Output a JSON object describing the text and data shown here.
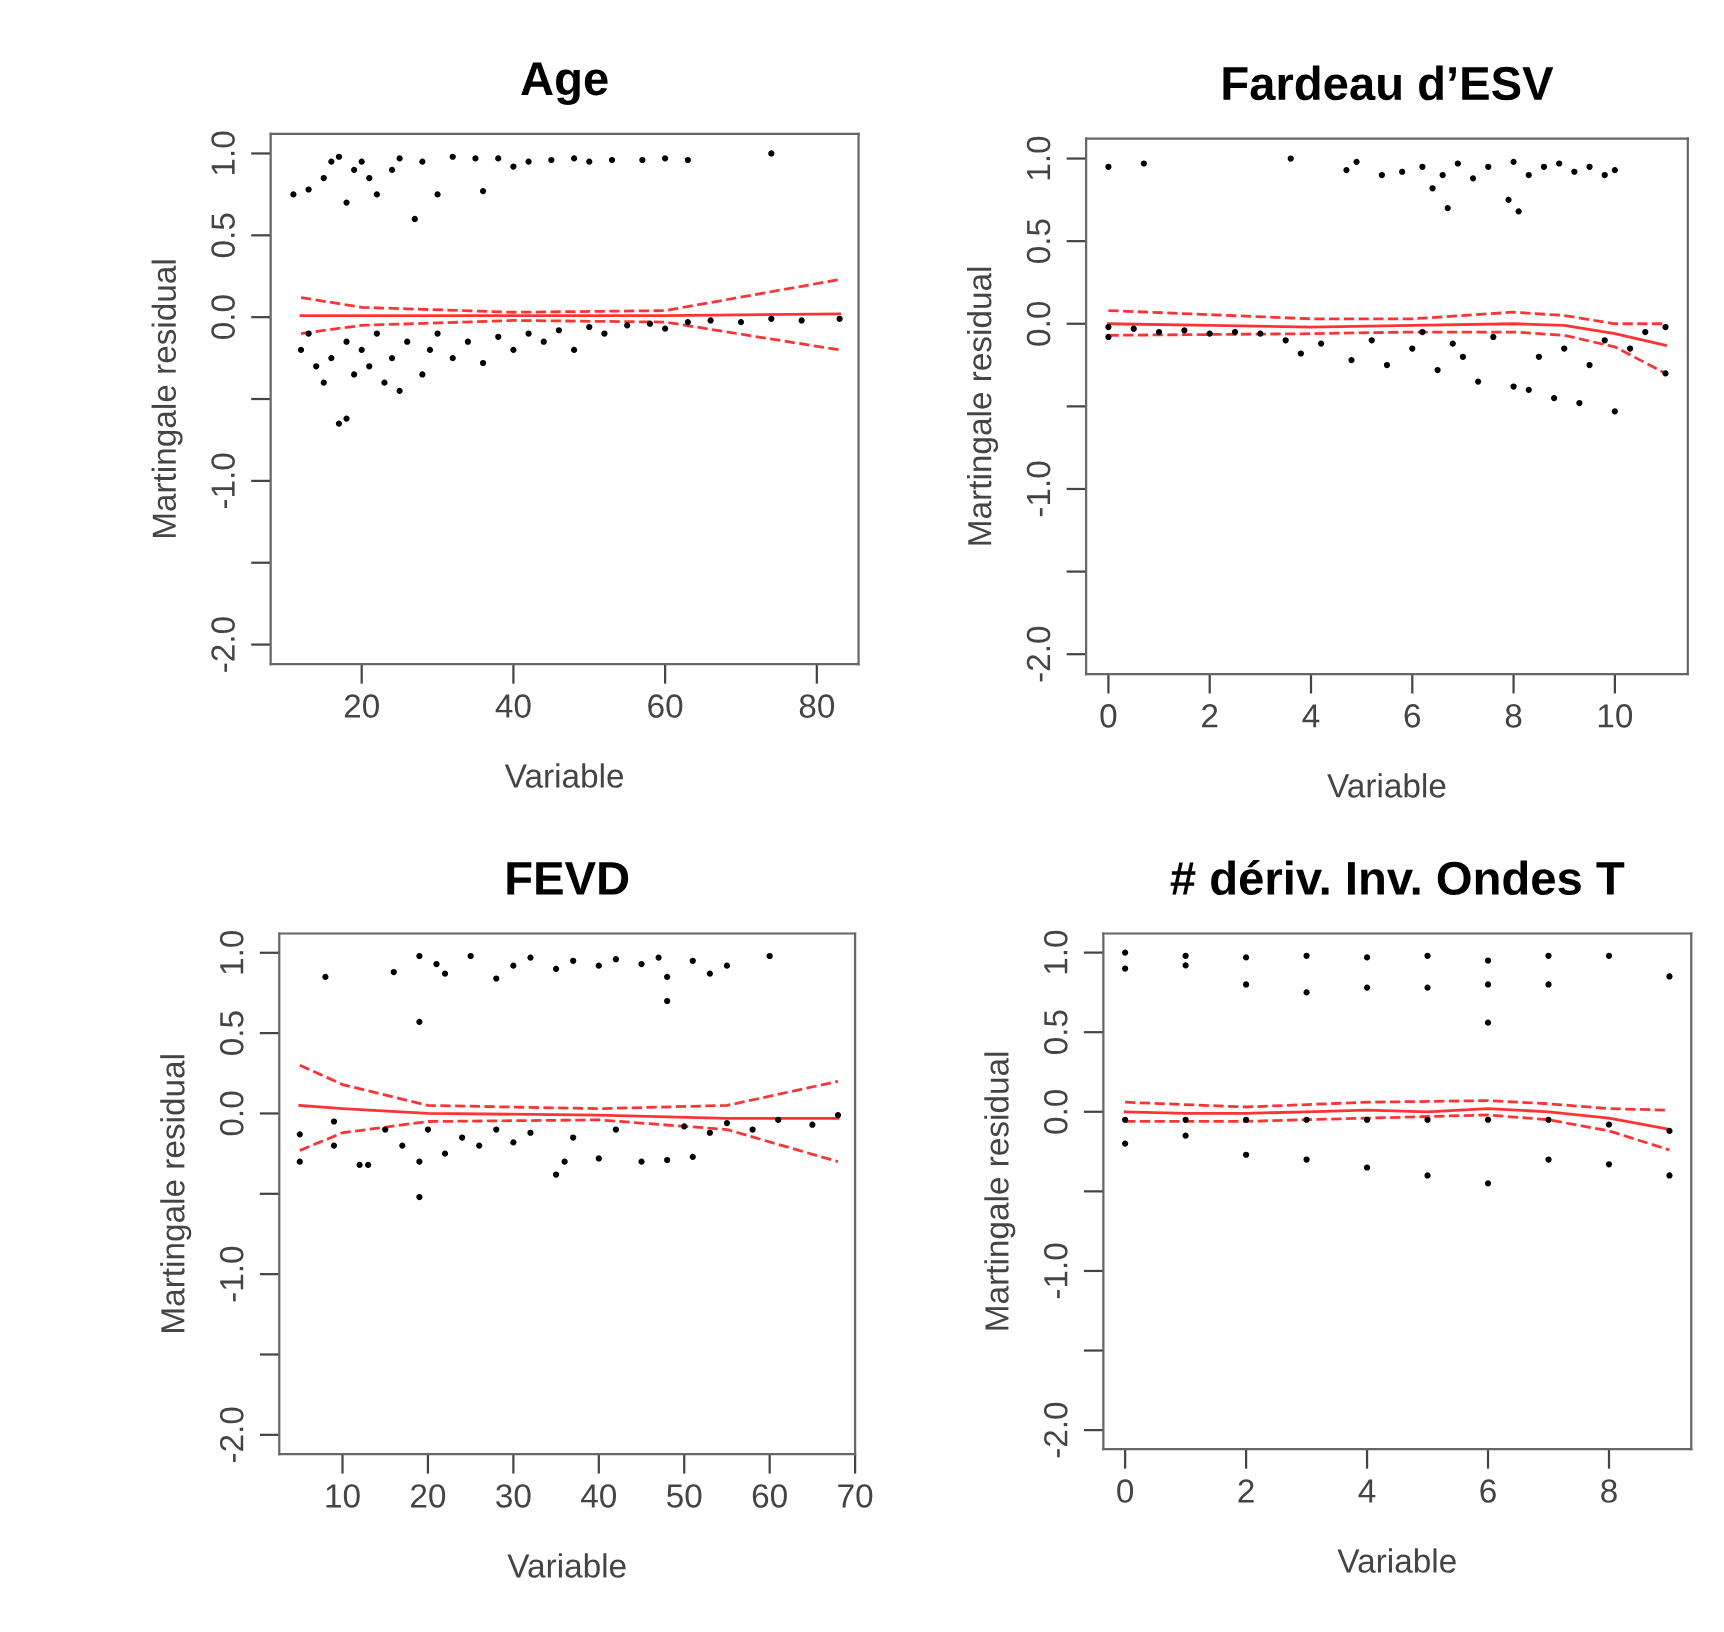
{
  "chart_data": [
    {
      "type": "scatter",
      "title": "Age",
      "xlabel": "Variable",
      "ylabel": "Martingale residual",
      "xlim": [
        8,
        85.5
      ],
      "xticks": [
        20,
        40,
        60,
        80
      ],
      "ylim": [
        -2.12,
        1.12
      ],
      "yticks": [
        {
          "value": 1.0,
          "label": "1.0"
        },
        {
          "value": 0.5,
          "label": "0.5"
        },
        {
          "value": 0.0,
          "label": "0.0"
        },
        {
          "value": -0.5,
          "label": null
        },
        {
          "value": -1.0,
          "label": "-1.0"
        },
        {
          "value": -1.5,
          "label": null
        },
        {
          "value": -2.0,
          "label": "-2.0"
        }
      ],
      "grid": false,
      "series": [
        {
          "type": "scatter",
          "marker": "circle",
          "color": "#000000",
          "x": [
            11,
            13,
            15,
            16,
            17,
            18,
            19,
            20,
            21,
            22,
            24,
            25,
            27,
            28,
            30,
            32,
            35,
            36,
            38,
            40,
            42,
            45,
            48,
            50,
            53,
            57,
            60,
            63,
            74,
            12,
            13,
            14,
            15,
            16,
            17,
            18,
            18,
            19,
            20,
            21,
            22,
            23,
            24,
            25,
            26,
            28,
            29,
            30,
            32,
            34,
            36,
            38,
            40,
            42,
            44,
            46,
            48,
            50,
            52,
            55,
            58,
            60,
            63,
            66,
            70,
            74,
            78,
            83
          ],
          "values": [
            0.75,
            0.78,
            0.85,
            0.95,
            0.98,
            0.7,
            0.9,
            0.95,
            0.85,
            0.75,
            0.9,
            0.97,
            0.6,
            0.95,
            0.75,
            0.98,
            0.97,
            0.77,
            0.97,
            0.92,
            0.95,
            0.96,
            0.97,
            0.95,
            0.96,
            0.96,
            0.97,
            0.96,
            1.0,
            -0.2,
            -0.1,
            -0.3,
            -0.4,
            -0.25,
            -0.65,
            -0.62,
            -0.15,
            -0.35,
            -0.2,
            -0.3,
            -0.1,
            -0.4,
            -0.25,
            -0.45,
            -0.15,
            -0.35,
            -0.2,
            -0.1,
            -0.25,
            -0.15,
            -0.28,
            -0.12,
            -0.2,
            -0.1,
            -0.15,
            -0.08,
            -0.2,
            -0.06,
            -0.1,
            -0.05,
            -0.04,
            -0.07,
            -0.03,
            -0.02,
            -0.03,
            -0.01,
            -0.02,
            -0.01
          ]
        },
        {
          "type": "line",
          "marker": "none",
          "color": "#ff0000",
          "line_style": "solid",
          "x": [
            12,
            20,
            40,
            60,
            83
          ],
          "values": [
            0.01,
            0.01,
            0.01,
            0.01,
            0.02
          ]
        },
        {
          "type": "line",
          "marker": "none",
          "color": "#ff0000",
          "line_style": "dashed",
          "x": [
            12,
            20,
            40,
            60,
            83
          ],
          "values": [
            0.12,
            0.06,
            0.03,
            0.04,
            0.23
          ]
        },
        {
          "type": "line",
          "marker": "none",
          "color": "#ff0000",
          "line_style": "dashed",
          "x": [
            12,
            20,
            40,
            60,
            83
          ],
          "values": [
            -0.1,
            -0.05,
            -0.02,
            -0.03,
            -0.2
          ]
        }
      ]
    },
    {
      "type": "scatter",
      "title": "Fardeau d’ESV",
      "xlabel": "Variable",
      "ylabel": "Martingale residual",
      "xlim": [
        -0.44,
        11.44
      ],
      "xticks": [
        0,
        2,
        4,
        6,
        8,
        10
      ],
      "ylim": [
        -2.12,
        1.12
      ],
      "yticks": [
        {
          "value": 1.0,
          "label": "1.0"
        },
        {
          "value": 0.5,
          "label": "0.5"
        },
        {
          "value": 0.0,
          "label": "0.0"
        },
        {
          "value": -0.5,
          "label": null
        },
        {
          "value": -1.0,
          "label": "-1.0"
        },
        {
          "value": -1.5,
          "label": null
        },
        {
          "value": -2.0,
          "label": "-2.0"
        }
      ],
      "grid": false,
      "series": [
        {
          "type": "scatter",
          "marker": "circle",
          "color": "#000000",
          "x": [
            0,
            0.7,
            3.6,
            4.7,
            4.9,
            5.4,
            5.8,
            6.2,
            6.4,
            6.6,
            6.7,
            6.9,
            7.2,
            7.5,
            7.9,
            8.0,
            8.1,
            8.3,
            8.6,
            8.9,
            9.2,
            9.5,
            9.8,
            10,
            0,
            0,
            0.5,
            1,
            1.5,
            2,
            2.5,
            3,
            3.5,
            3.8,
            4.2,
            4.8,
            5.2,
            5.5,
            6,
            6.2,
            6.5,
            6.8,
            7,
            7.3,
            7.6,
            8,
            8.3,
            8.5,
            8.8,
            9,
            9.3,
            9.5,
            9.8,
            10,
            10.3,
            10.6,
            11,
            11
          ],
          "values": [
            0.95,
            0.97,
            1.0,
            0.93,
            0.98,
            0.9,
            0.92,
            0.95,
            0.82,
            0.9,
            0.7,
            0.97,
            0.88,
            0.95,
            0.75,
            0.98,
            0.68,
            0.9,
            0.95,
            0.97,
            0.92,
            0.95,
            0.9,
            0.93,
            -0.02,
            -0.08,
            -0.03,
            -0.05,
            -0.04,
            -0.06,
            -0.05,
            -0.06,
            -0.1,
            -0.18,
            -0.12,
            -0.22,
            -0.1,
            -0.25,
            -0.15,
            -0.05,
            -0.28,
            -0.12,
            -0.2,
            -0.35,
            -0.08,
            -0.38,
            -0.4,
            -0.2,
            -0.45,
            -0.15,
            -0.48,
            -0.25,
            -0.1,
            -0.53,
            -0.15,
            -0.05,
            -0.02,
            -0.3
          ]
        },
        {
          "type": "line",
          "marker": "none",
          "color": "#ff0000",
          "line_style": "solid",
          "x": [
            0,
            2,
            4,
            6,
            8,
            9,
            10,
            11
          ],
          "values": [
            0.0,
            -0.01,
            -0.02,
            -0.01,
            0.0,
            -0.01,
            -0.06,
            -0.13
          ]
        },
        {
          "type": "line",
          "marker": "none",
          "color": "#ff0000",
          "line_style": "dashed",
          "x": [
            0,
            4,
            6,
            8,
            9,
            10,
            11
          ],
          "values": [
            0.08,
            0.03,
            0.03,
            0.07,
            0.05,
            0.0,
            0.0
          ]
        },
        {
          "type": "line",
          "marker": "none",
          "color": "#ff0000",
          "line_style": "dashed",
          "x": [
            0,
            4,
            6,
            8,
            9,
            10,
            11
          ],
          "values": [
            -0.07,
            -0.06,
            -0.05,
            -0.05,
            -0.07,
            -0.14,
            -0.3
          ]
        }
      ]
    },
    {
      "type": "scatter",
      "title": "FEVD",
      "xlabel": "Variable",
      "ylabel": "Martingale residual",
      "xlim": [
        2.6,
        70
      ],
      "xticks": [
        10,
        20,
        30,
        40,
        50,
        60,
        70
      ],
      "ylim": [
        -2.12,
        1.12
      ],
      "yticks": [
        {
          "value": 1.0,
          "label": "1.0"
        },
        {
          "value": 0.5,
          "label": "0.5"
        },
        {
          "value": 0.0,
          "label": "0.0"
        },
        {
          "value": -0.5,
          "label": null
        },
        {
          "value": -1.0,
          "label": "-1.0"
        },
        {
          "value": -1.5,
          "label": null
        },
        {
          "value": -2.0,
          "label": "-2.0"
        }
      ],
      "grid": false,
      "series": [
        {
          "type": "scatter",
          "marker": "circle",
          "color": "#000000",
          "x": [
            8,
            16,
            19,
            19,
            21,
            22,
            25,
            28,
            30,
            32,
            35,
            37,
            40,
            42,
            45,
            47,
            48,
            48,
            51,
            53,
            55,
            60,
            5,
            5,
            9,
            9,
            12,
            13,
            15,
            17,
            19,
            19,
            20,
            22,
            24,
            26,
            28,
            30,
            32,
            35,
            36,
            37,
            40,
            42,
            45,
            48,
            50,
            51,
            53,
            55,
            58,
            61,
            65,
            68
          ],
          "values": [
            0.85,
            0.88,
            0.98,
            0.57,
            0.93,
            0.87,
            0.98,
            0.84,
            0.92,
            0.97,
            0.9,
            0.95,
            0.92,
            0.96,
            0.93,
            0.97,
            0.7,
            0.85,
            0.95,
            0.87,
            0.92,
            0.98,
            -0.13,
            -0.3,
            -0.05,
            -0.2,
            -0.32,
            -0.32,
            -0.1,
            -0.2,
            -0.52,
            -0.3,
            -0.1,
            -0.25,
            -0.15,
            -0.2,
            -0.1,
            -0.18,
            -0.12,
            -0.38,
            -0.3,
            -0.15,
            -0.28,
            -0.1,
            -0.3,
            -0.29,
            -0.08,
            -0.27,
            -0.12,
            -0.06,
            -0.1,
            -0.04,
            -0.07,
            -0.01
          ]
        },
        {
          "type": "line",
          "marker": "none",
          "color": "#ff0000",
          "line_style": "solid",
          "x": [
            5,
            10,
            20,
            40,
            55,
            68
          ],
          "values": [
            0.05,
            0.03,
            0.0,
            -0.01,
            -0.03,
            -0.03
          ]
        },
        {
          "type": "line",
          "marker": "none",
          "color": "#ff0000",
          "line_style": "dashed",
          "x": [
            5,
            10,
            20,
            40,
            55,
            68
          ],
          "values": [
            0.3,
            0.18,
            0.05,
            0.03,
            0.05,
            0.2
          ]
        },
        {
          "type": "line",
          "marker": "none",
          "color": "#ff0000",
          "line_style": "dashed",
          "x": [
            5,
            10,
            20,
            40,
            55,
            68
          ],
          "values": [
            -0.23,
            -0.12,
            -0.05,
            -0.04,
            -0.1,
            -0.3
          ]
        }
      ]
    },
    {
      "type": "scatter",
      "title": "# dériv. Inv. Ondes T",
      "xlabel": "Variable",
      "ylabel": "Martingale residual",
      "xlim": [
        -0.36,
        9.36
      ],
      "xticks": [
        0,
        2,
        4,
        6,
        8
      ],
      "ylim": [
        -2.12,
        1.12
      ],
      "yticks": [
        {
          "value": 1.0,
          "label": "1.0"
        },
        {
          "value": 0.5,
          "label": "0.5"
        },
        {
          "value": 0.0,
          "label": "0.0"
        },
        {
          "value": -0.5,
          "label": null
        },
        {
          "value": -1.0,
          "label": "-1.0"
        },
        {
          "value": -1.5,
          "label": null
        },
        {
          "value": -2.0,
          "label": "-2.0"
        }
      ],
      "grid": false,
      "series": [
        {
          "type": "scatter",
          "marker": "circle",
          "color": "#000000",
          "x": [
            0,
            0,
            0,
            0,
            1,
            1,
            1,
            1,
            2,
            2,
            2,
            2,
            3,
            3,
            3,
            3,
            4,
            4,
            4,
            4,
            5,
            5,
            5,
            5,
            6,
            6,
            6,
            6,
            6,
            7,
            7,
            7,
            7,
            8,
            8,
            8,
            9,
            9,
            9
          ],
          "values": [
            1.0,
            0.9,
            -0.05,
            -0.2,
            0.98,
            0.92,
            -0.05,
            -0.15,
            0.97,
            0.8,
            -0.05,
            -0.27,
            0.98,
            0.75,
            -0.05,
            -0.3,
            0.97,
            0.78,
            -0.05,
            -0.35,
            0.98,
            0.78,
            -0.05,
            -0.4,
            0.95,
            0.8,
            0.56,
            -0.05,
            -0.45,
            0.98,
            0.8,
            -0.05,
            -0.3,
            0.98,
            -0.08,
            -0.33,
            0.85,
            -0.12,
            -0.4
          ]
        },
        {
          "type": "line",
          "marker": "none",
          "color": "#ff0000",
          "line_style": "solid",
          "x": [
            0,
            1,
            2,
            3,
            4,
            5,
            6,
            7,
            8,
            9
          ],
          "values": [
            0.0,
            -0.01,
            -0.01,
            0.0,
            0.01,
            0.0,
            0.02,
            0.0,
            -0.04,
            -0.11
          ]
        },
        {
          "type": "line",
          "marker": "none",
          "color": "#ff0000",
          "line_style": "dashed",
          "x": [
            0,
            2,
            4,
            6,
            7,
            8,
            9
          ],
          "values": [
            0.06,
            0.03,
            0.06,
            0.07,
            0.05,
            0.02,
            0.01
          ]
        },
        {
          "type": "line",
          "marker": "none",
          "color": "#ff0000",
          "line_style": "dashed",
          "x": [
            0,
            2,
            4,
            6,
            7,
            8,
            9
          ],
          "values": [
            -0.06,
            -0.06,
            -0.04,
            -0.02,
            -0.05,
            -0.12,
            -0.24
          ]
        }
      ]
    }
  ]
}
